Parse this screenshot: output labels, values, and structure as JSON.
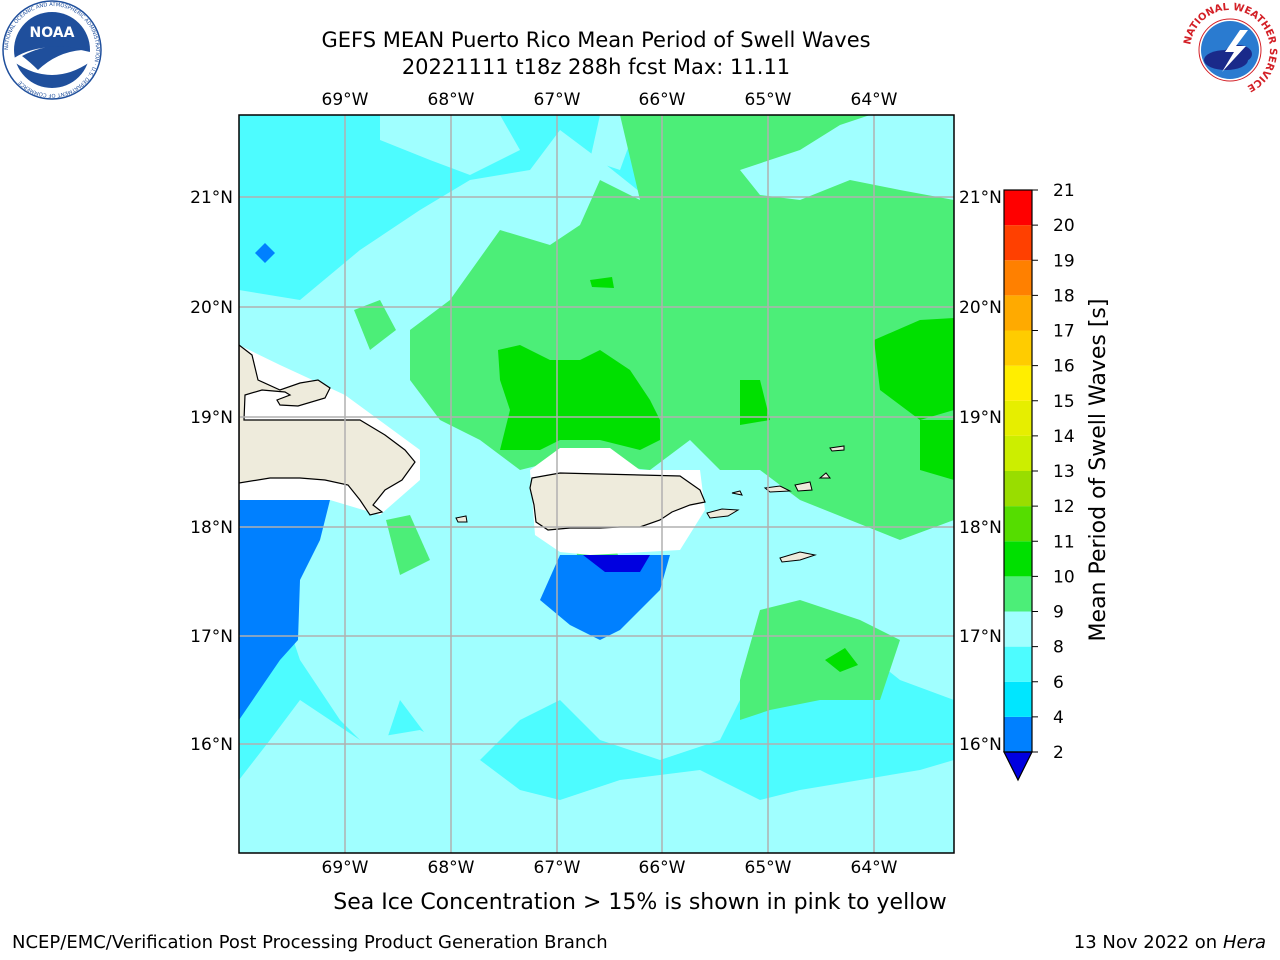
{
  "title": {
    "line1": "GEFS MEAN Puerto Rico Mean Period of Swell Waves",
    "line2": "20221111 t18z 288h fcst   Max: 11.11"
  },
  "logos": {
    "noaa": {
      "text": "NOAA",
      "ring_text": "NATIONAL OCEANIC AND ATMOSPHERIC ADMINISTRATION · U.S. DEPARTMENT OF COMMERCE",
      "color": "#1f4f9c"
    },
    "nws": {
      "ring_text": "NATIONAL WEATHER SERVICE",
      "color": "#d31f26"
    }
  },
  "map": {
    "lon_labels": [
      "69°W",
      "68°W",
      "67°W",
      "66°W",
      "65°W",
      "64°W"
    ],
    "lat_labels": [
      "21°N",
      "20°N",
      "19°N",
      "18°N",
      "17°N",
      "16°N"
    ],
    "land_color": "#eeebdc",
    "coast_color": "#000000",
    "grid_color": "#b0b0b0"
  },
  "colorbar": {
    "label": "Mean Period of Swell Waves [s]",
    "ticks": [
      "2",
      "4",
      "6",
      "8",
      "9",
      "10",
      "11",
      "12",
      "13",
      "14",
      "15",
      "16",
      "17",
      "18",
      "19",
      "20",
      "21"
    ],
    "colors": [
      "#0045f0",
      "#0080ff",
      "#00e6ff",
      "#4dfcff",
      "#a0ffff",
      "#4cee78",
      "#00e000",
      "#55dd00",
      "#99dd00",
      "#ccee00",
      "#e6ee00",
      "#ffee00",
      "#ffcc00",
      "#ffaa00",
      "#ff8000",
      "#ff4000",
      "#ff0000"
    ],
    "extend_color": "#0000e0"
  },
  "footer": {
    "note": "Sea Ice Concentration > 15% is shown in pink to yellow",
    "credit": "NCEP/EMC/Verification Post Processing Product Generation Branch",
    "date": "13 Nov 2022 on",
    "host": "Hera"
  }
}
